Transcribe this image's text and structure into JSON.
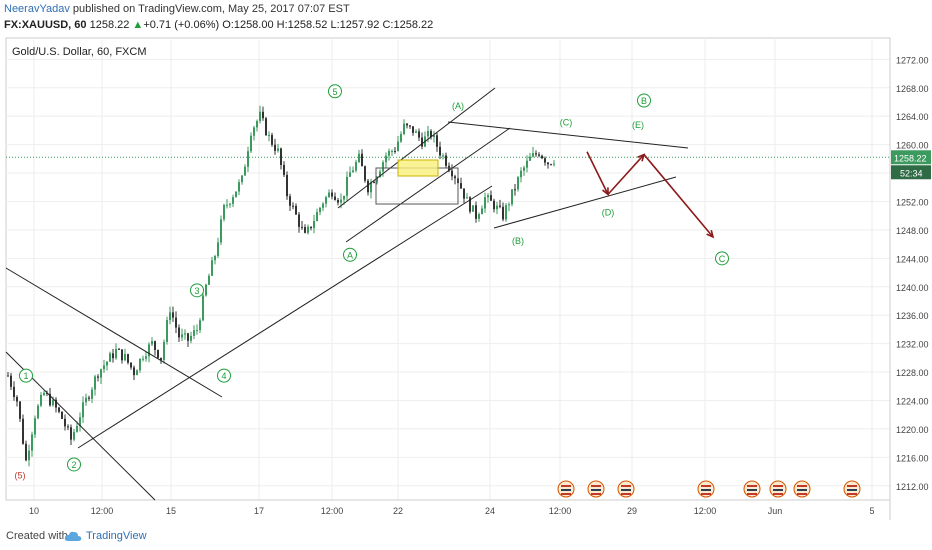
{
  "header": {
    "author": "NeeravYadav",
    "published_text": " published on TradingView.com, May 25, 2017 07:07 EST",
    "symbol": "FX:XAUUSD, 60",
    "price": "1258.22",
    "change": "+0.71 (+0.06%)",
    "ohlc": "O:1258.00 H:1258.52 L:1257.92 C:1258.22"
  },
  "footer": {
    "created_with": "Created with",
    "brand": "TradingView"
  },
  "colors": {
    "up": "#3c9a5f",
    "down": "#333333",
    "wave_label": "#1e9e3a",
    "arrow": "#8b1a1a",
    "trend": "#222222",
    "grid": "#eeeeee",
    "price_line": "#3c9a5f"
  },
  "chart_data": {
    "type": "candlestick",
    "title": "Gold/U.S. Dollar, 60, FXCM",
    "ylim": [
      1210,
      1275
    ],
    "y_ticks": [
      "1272.00",
      "1268.00",
      "1264.00",
      "1260.00",
      "1256.00",
      "1252.00",
      "1248.00",
      "1244.00",
      "1240.00",
      "1236.00",
      "1232.00",
      "1228.00",
      "1224.00",
      "1220.00",
      "1216.00",
      "1212.00"
    ],
    "x_ticks": [
      "10",
      "12:00",
      "15",
      "17",
      "12:00",
      "22",
      "24",
      "12:00",
      "29",
      "12:00",
      "Jun",
      "5"
    ],
    "last_price": "1258.22",
    "countdown": "52:34",
    "price_path": [
      [
        0,
        1227.5
      ],
      [
        3,
        1224
      ],
      [
        6,
        1215.5
      ],
      [
        9,
        1222
      ],
      [
        12,
        1225
      ],
      [
        15,
        1223.5
      ],
      [
        18,
        1221.5
      ],
      [
        21,
        1218.5
      ],
      [
        24,
        1222
      ],
      [
        27,
        1225
      ],
      [
        30,
        1228
      ],
      [
        33,
        1229.5
      ],
      [
        36,
        1231
      ],
      [
        39,
        1230
      ],
      [
        42,
        1228
      ],
      [
        45,
        1230.5
      ],
      [
        48,
        1232
      ],
      [
        51,
        1230
      ],
      [
        54,
        1237
      ],
      [
        57,
        1233
      ],
      [
        60,
        1232.5
      ],
      [
        63,
        1234
      ],
      [
        66,
        1240
      ],
      [
        69,
        1244.5
      ],
      [
        72,
        1251
      ],
      [
        75,
        1253
      ],
      [
        78,
        1255
      ],
      [
        81,
        1262
      ],
      [
        84,
        1264
      ],
      [
        87,
        1261
      ],
      [
        90,
        1259
      ],
      [
        93,
        1253
      ],
      [
        96,
        1250
      ],
      [
        99,
        1247
      ],
      [
        102,
        1249.5
      ],
      [
        105,
        1252
      ],
      [
        108,
        1253.5
      ],
      [
        111,
        1252
      ],
      [
        114,
        1256
      ],
      [
        117,
        1258
      ],
      [
        120,
        1254
      ],
      [
        123,
        1256
      ],
      [
        126,
        1258.5
      ],
      [
        129,
        1259.5
      ],
      [
        132,
        1262.5
      ],
      [
        135,
        1262
      ],
      [
        138,
        1260.5
      ],
      [
        141,
        1261.5
      ],
      [
        144,
        1259
      ],
      [
        147,
        1257
      ],
      [
        150,
        1255
      ],
      [
        153,
        1252
      ],
      [
        156,
        1250
      ],
      [
        159,
        1252.5
      ],
      [
        162,
        1251.5
      ],
      [
        165,
        1250
      ],
      [
        168,
        1253
      ],
      [
        171,
        1256
      ],
      [
        174,
        1258
      ],
      [
        177,
        1259
      ],
      [
        180,
        1257.5
      ],
      [
        183,
        1258.2
      ]
    ],
    "wave_labels": [
      {
        "text": "(5)",
        "i": 4,
        "y": 1213.5,
        "style": "paren-red"
      },
      {
        "text": "1",
        "i": 6,
        "y": 1227.5,
        "style": "circle"
      },
      {
        "text": "2",
        "i": 22,
        "y": 1215,
        "style": "circle"
      },
      {
        "text": "3",
        "i": 63,
        "y": 1239.5,
        "style": "circle"
      },
      {
        "text": "4",
        "i": 72,
        "y": 1227.5,
        "style": "circle"
      },
      {
        "text": "5",
        "i": 109,
        "y": 1267.5,
        "style": "circle"
      },
      {
        "text": "A",
        "i": 114,
        "y": 1244.5,
        "style": "circle"
      },
      {
        "text": "(A)",
        "i": 150,
        "y": 1265.5,
        "style": "paren"
      },
      {
        "text": "(B)",
        "i": 170,
        "y": 1246.5,
        "style": "paren"
      },
      {
        "text": "(C)",
        "i": 186,
        "y": 1263.2,
        "style": "paren"
      },
      {
        "text": "(D)",
        "i": 200,
        "y": 1250.5,
        "style": "paren"
      },
      {
        "text": "(E)",
        "i": 210,
        "y": 1262.8,
        "style": "paren"
      },
      {
        "text": "B",
        "i": 212,
        "y": 1266.2,
        "style": "circle"
      },
      {
        "text": "C",
        "i": 238,
        "y": 1244,
        "style": "circle"
      }
    ],
    "projection": [
      [
        193,
        1259
      ],
      [
        200,
        1253
      ],
      [
        212,
        1258.6
      ],
      [
        235,
        1247
      ]
    ]
  }
}
